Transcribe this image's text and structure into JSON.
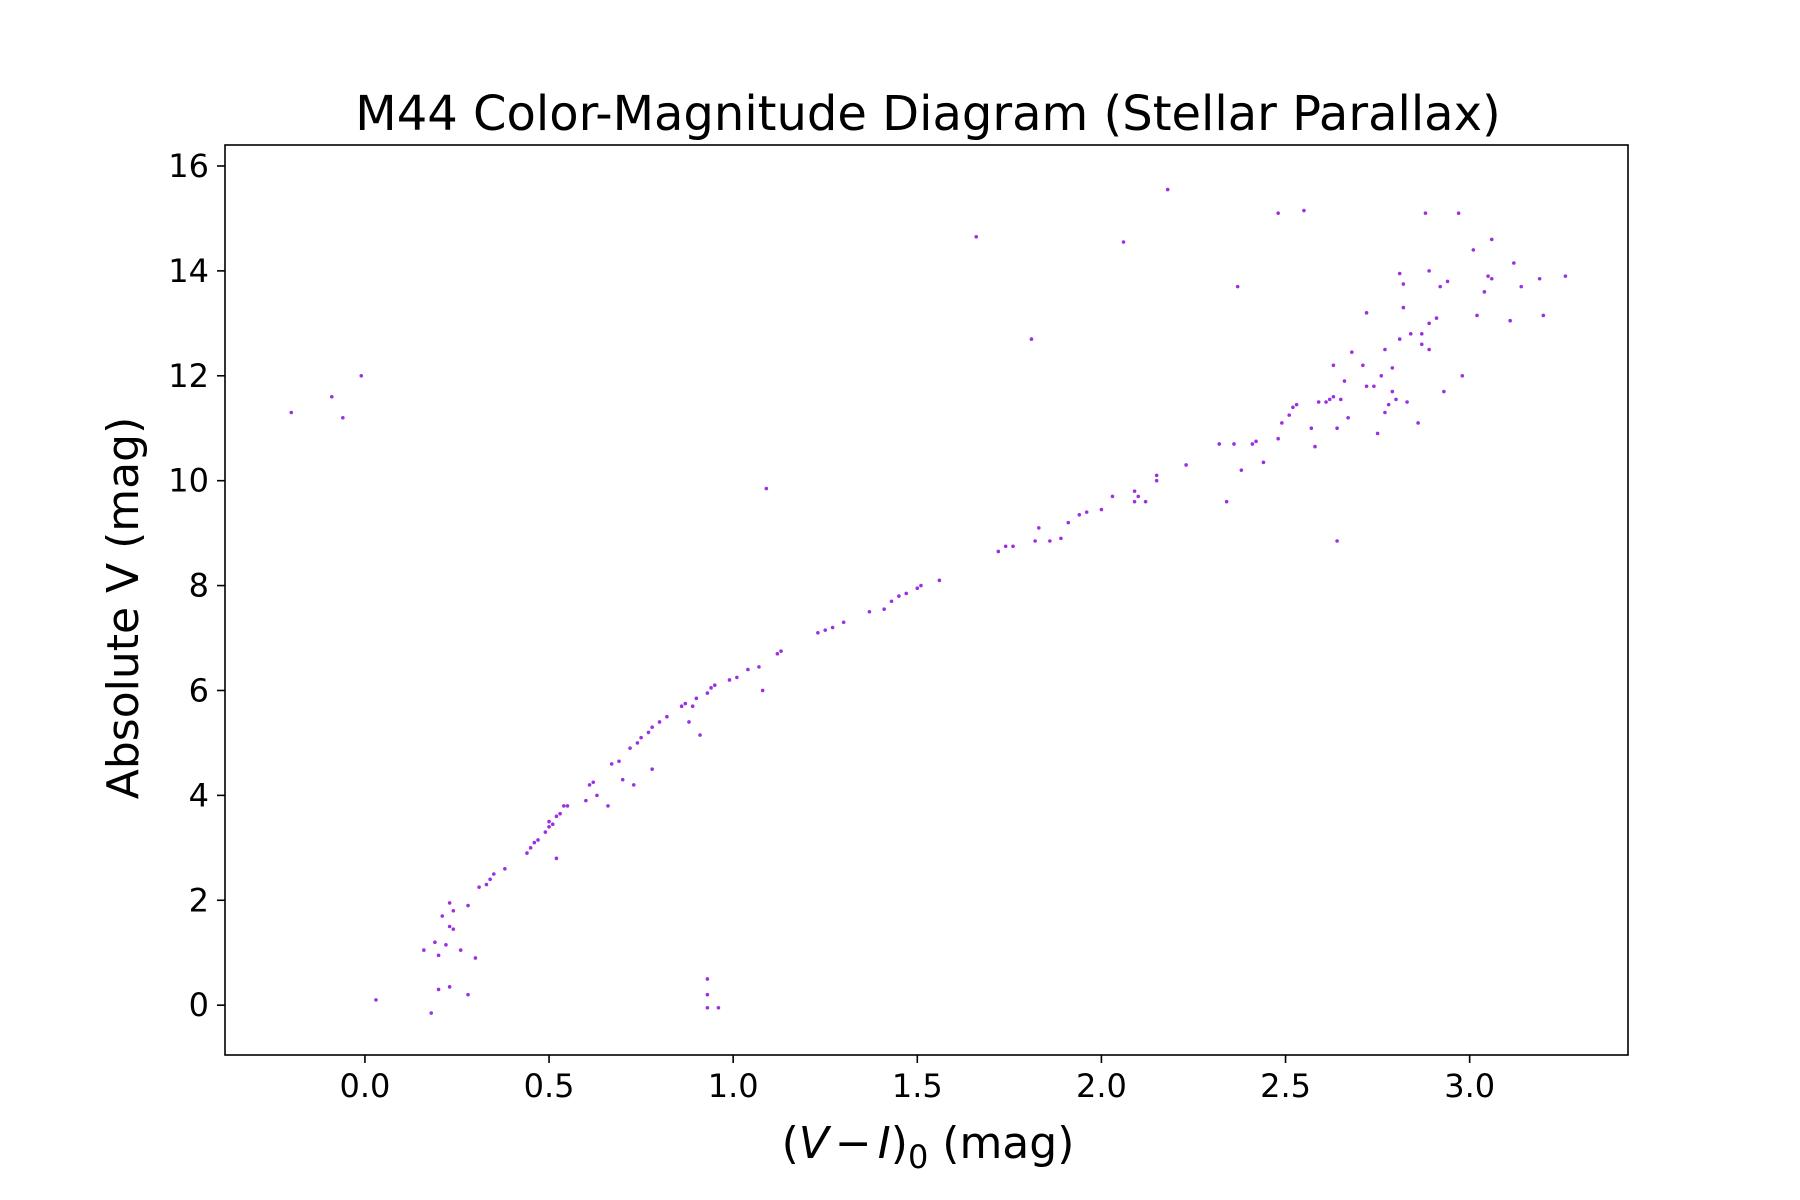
{
  "chart_data": {
    "type": "scatter",
    "title": "M44 Color-Magnitude Diagram (Stellar Parallax)",
    "xlabel_parts": {
      "open": "(",
      "v": "V",
      "minus": "−",
      "i": "I",
      "close": ")",
      "sub": "0",
      "unit": " (mag)"
    },
    "ylabel": "Absolute V (mag)",
    "xlim": [
      -0.38,
      3.43
    ],
    "ylim": [
      -0.95,
      16.4
    ],
    "xticks": [
      0.0,
      0.5,
      1.0,
      1.5,
      2.0,
      2.5,
      3.0
    ],
    "xtick_labels": [
      "0.0",
      "0.5",
      "1.0",
      "1.5",
      "2.0",
      "2.5",
      "3.0"
    ],
    "yticks": [
      0,
      2,
      4,
      6,
      8,
      10,
      12,
      14,
      16
    ],
    "ytick_labels": [
      "0",
      "2",
      "4",
      "6",
      "8",
      "10",
      "12",
      "14",
      "16"
    ],
    "grid": false,
    "marker_color": "#9b30e0",
    "points": [
      [
        -0.2,
        11.3
      ],
      [
        -0.09,
        11.6
      ],
      [
        -0.06,
        11.2
      ],
      [
        -0.01,
        12.0
      ],
      [
        0.03,
        0.1
      ],
      [
        0.16,
        1.05
      ],
      [
        0.18,
        -0.15
      ],
      [
        0.19,
        1.2
      ],
      [
        0.2,
        0.95
      ],
      [
        0.2,
        0.3
      ],
      [
        0.21,
        1.7
      ],
      [
        0.22,
        1.15
      ],
      [
        0.23,
        1.95
      ],
      [
        0.23,
        1.5
      ],
      [
        0.23,
        0.35
      ],
      [
        0.24,
        1.8
      ],
      [
        0.24,
        1.45
      ],
      [
        0.26,
        1.05
      ],
      [
        0.28,
        1.9
      ],
      [
        0.28,
        0.2
      ],
      [
        0.3,
        0.9
      ],
      [
        0.31,
        2.25
      ],
      [
        0.33,
        2.3
      ],
      [
        0.34,
        2.4
      ],
      [
        0.35,
        2.5
      ],
      [
        0.38,
        2.6
      ],
      [
        0.44,
        2.9
      ],
      [
        0.45,
        3.0
      ],
      [
        0.46,
        3.1
      ],
      [
        0.47,
        3.15
      ],
      [
        0.49,
        3.3
      ],
      [
        0.5,
        3.4
      ],
      [
        0.5,
        3.5
      ],
      [
        0.51,
        3.45
      ],
      [
        0.52,
        3.6
      ],
      [
        0.52,
        2.8
      ],
      [
        0.53,
        3.65
      ],
      [
        0.54,
        3.8
      ],
      [
        0.55,
        3.8
      ],
      [
        0.6,
        3.9
      ],
      [
        0.61,
        4.2
      ],
      [
        0.62,
        4.25
      ],
      [
        0.63,
        4.0
      ],
      [
        0.66,
        3.8
      ],
      [
        0.67,
        4.6
      ],
      [
        0.69,
        4.65
      ],
      [
        0.7,
        4.3
      ],
      [
        0.72,
        4.9
      ],
      [
        0.73,
        4.2
      ],
      [
        0.74,
        5.0
      ],
      [
        0.75,
        5.1
      ],
      [
        0.77,
        5.2
      ],
      [
        0.78,
        5.3
      ],
      [
        0.78,
        4.5
      ],
      [
        0.8,
        5.4
      ],
      [
        0.82,
        5.5
      ],
      [
        0.86,
        5.7
      ],
      [
        0.87,
        5.75
      ],
      [
        0.88,
        5.4
      ],
      [
        0.89,
        5.7
      ],
      [
        0.9,
        5.85
      ],
      [
        0.91,
        5.15
      ],
      [
        0.93,
        5.95
      ],
      [
        0.93,
        0.5
      ],
      [
        0.93,
        0.2
      ],
      [
        0.93,
        -0.05
      ],
      [
        0.94,
        6.05
      ],
      [
        0.95,
        6.1
      ],
      [
        0.96,
        -0.05
      ],
      [
        0.99,
        6.2
      ],
      [
        1.01,
        6.25
      ],
      [
        1.04,
        6.4
      ],
      [
        1.07,
        6.45
      ],
      [
        1.08,
        6.0
      ],
      [
        1.09,
        9.85
      ],
      [
        1.12,
        6.7
      ],
      [
        1.13,
        6.75
      ],
      [
        1.23,
        7.1
      ],
      [
        1.25,
        7.15
      ],
      [
        1.27,
        7.2
      ],
      [
        1.3,
        7.3
      ],
      [
        1.37,
        7.5
      ],
      [
        1.41,
        7.55
      ],
      [
        1.43,
        7.7
      ],
      [
        1.45,
        7.8
      ],
      [
        1.47,
        7.85
      ],
      [
        1.5,
        7.95
      ],
      [
        1.51,
        8.0
      ],
      [
        1.56,
        8.1
      ],
      [
        1.66,
        14.65
      ],
      [
        1.72,
        8.65
      ],
      [
        1.74,
        8.75
      ],
      [
        1.76,
        8.75
      ],
      [
        1.81,
        12.7
      ],
      [
        1.82,
        8.85
      ],
      [
        1.83,
        9.1
      ],
      [
        1.86,
        8.85
      ],
      [
        1.89,
        8.9
      ],
      [
        1.91,
        9.2
      ],
      [
        1.94,
        9.35
      ],
      [
        1.96,
        9.4
      ],
      [
        2.0,
        9.45
      ],
      [
        2.03,
        9.7
      ],
      [
        2.06,
        14.55
      ],
      [
        2.09,
        9.6
      ],
      [
        2.09,
        9.8
      ],
      [
        2.1,
        9.7
      ],
      [
        2.12,
        9.6
      ],
      [
        2.15,
        10.0
      ],
      [
        2.15,
        10.1
      ],
      [
        2.18,
        15.55
      ],
      [
        2.23,
        10.3
      ],
      [
        2.32,
        10.7
      ],
      [
        2.34,
        9.6
      ],
      [
        2.36,
        10.7
      ],
      [
        2.37,
        13.7
      ],
      [
        2.38,
        10.2
      ],
      [
        2.41,
        10.7
      ],
      [
        2.42,
        10.75
      ],
      [
        2.44,
        10.35
      ],
      [
        2.48,
        15.1
      ],
      [
        2.48,
        10.8
      ],
      [
        2.49,
        11.1
      ],
      [
        2.51,
        11.25
      ],
      [
        2.52,
        11.4
      ],
      [
        2.53,
        11.45
      ],
      [
        2.55,
        15.15
      ],
      [
        2.57,
        11.0
      ],
      [
        2.58,
        10.65
      ],
      [
        2.59,
        11.5
      ],
      [
        2.61,
        11.5
      ],
      [
        2.62,
        11.55
      ],
      [
        2.63,
        12.2
      ],
      [
        2.63,
        11.6
      ],
      [
        2.64,
        8.85
      ],
      [
        2.64,
        11.0
      ],
      [
        2.65,
        11.55
      ],
      [
        2.66,
        11.9
      ],
      [
        2.67,
        11.2
      ],
      [
        2.68,
        12.45
      ],
      [
        2.71,
        12.2
      ],
      [
        2.72,
        13.2
      ],
      [
        2.72,
        11.8
      ],
      [
        2.74,
        11.8
      ],
      [
        2.75,
        10.9
      ],
      [
        2.76,
        12.0
      ],
      [
        2.77,
        12.5
      ],
      [
        2.77,
        11.3
      ],
      [
        2.78,
        11.45
      ],
      [
        2.79,
        12.15
      ],
      [
        2.79,
        11.7
      ],
      [
        2.8,
        11.55
      ],
      [
        2.81,
        12.7
      ],
      [
        2.81,
        13.95
      ],
      [
        2.82,
        13.75
      ],
      [
        2.82,
        13.3
      ],
      [
        2.83,
        11.5
      ],
      [
        2.84,
        12.8
      ],
      [
        2.86,
        11.1
      ],
      [
        2.87,
        12.8
      ],
      [
        2.87,
        12.6
      ],
      [
        2.88,
        15.1
      ],
      [
        2.89,
        12.5
      ],
      [
        2.89,
        13.0
      ],
      [
        2.89,
        14.0
      ],
      [
        2.91,
        13.1
      ],
      [
        2.92,
        13.7
      ],
      [
        2.93,
        11.7
      ],
      [
        2.94,
        13.8
      ],
      [
        2.97,
        15.1
      ],
      [
        2.98,
        12.0
      ],
      [
        3.01,
        14.4
      ],
      [
        3.02,
        13.15
      ],
      [
        3.04,
        13.6
      ],
      [
        3.05,
        13.9
      ],
      [
        3.06,
        14.6
      ],
      [
        3.06,
        13.85
      ],
      [
        3.11,
        13.05
      ],
      [
        3.12,
        14.15
      ],
      [
        3.14,
        13.7
      ],
      [
        3.19,
        13.85
      ],
      [
        3.2,
        13.15
      ],
      [
        3.26,
        13.9
      ]
    ]
  }
}
